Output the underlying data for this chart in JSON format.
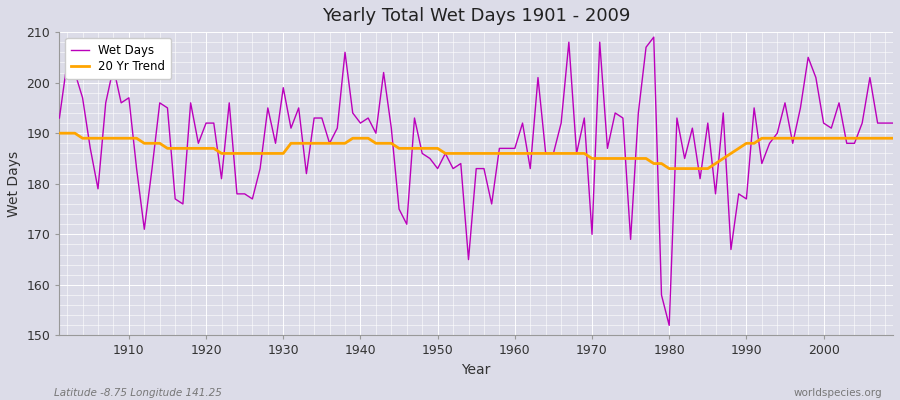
{
  "title": "Yearly Total Wet Days 1901 - 2009",
  "xlabel": "Year",
  "ylabel": "Wet Days",
  "subtitle": "Latitude -8.75 Longitude 141.25",
  "watermark": "worldspecies.org",
  "ylim": [
    150,
    210
  ],
  "xlim": [
    1901,
    2009
  ],
  "yticks": [
    150,
    160,
    170,
    180,
    190,
    200,
    210
  ],
  "xticks": [
    1910,
    1920,
    1930,
    1940,
    1950,
    1960,
    1970,
    1980,
    1990,
    2000
  ],
  "wet_days_color": "#BB00BB",
  "trend_color": "#FFA500",
  "background_color": "#DCDCE8",
  "plot_bg_color": "#DCDCE8",
  "wet_days": [
    193,
    204,
    202,
    197,
    187,
    179,
    196,
    203,
    196,
    197,
    183,
    171,
    183,
    196,
    195,
    177,
    176,
    196,
    188,
    192,
    192,
    181,
    196,
    178,
    178,
    177,
    183,
    195,
    188,
    199,
    191,
    195,
    182,
    193,
    193,
    188,
    191,
    206,
    194,
    192,
    193,
    190,
    202,
    191,
    175,
    172,
    193,
    186,
    185,
    183,
    186,
    183,
    184,
    165,
    183,
    183,
    176,
    187,
    187,
    187,
    192,
    183,
    201,
    186,
    186,
    192,
    208,
    186,
    193,
    170,
    208,
    187,
    194,
    193,
    169,
    194,
    207,
    209,
    158,
    152,
    193,
    185,
    191,
    181,
    192,
    178,
    194,
    167,
    178,
    177,
    195,
    184,
    188,
    190,
    196,
    188,
    195,
    205,
    201,
    192,
    191,
    196,
    188,
    188,
    192,
    201,
    192,
    192,
    192
  ],
  "trend": [
    190,
    190,
    190,
    189,
    189,
    189,
    189,
    189,
    189,
    189,
    189,
    188,
    188,
    188,
    187,
    187,
    187,
    187,
    187,
    187,
    187,
    186,
    186,
    186,
    186,
    186,
    186,
    186,
    186,
    186,
    188,
    188,
    188,
    188,
    188,
    188,
    188,
    188,
    189,
    189,
    189,
    188,
    188,
    188,
    187,
    187,
    187,
    187,
    187,
    187,
    186,
    186,
    186,
    186,
    186,
    186,
    186,
    186,
    186,
    186,
    186,
    186,
    186,
    186,
    186,
    186,
    186,
    186,
    186,
    185,
    185,
    185,
    185,
    185,
    185,
    185,
    185,
    184,
    184,
    183,
    183,
    183,
    183,
    183,
    183,
    184,
    185,
    186,
    187,
    188,
    188,
    189,
    189,
    189,
    189,
    189,
    189,
    189,
    189,
    189,
    189,
    189,
    189,
    189,
    189,
    189,
    189,
    189,
    189
  ]
}
